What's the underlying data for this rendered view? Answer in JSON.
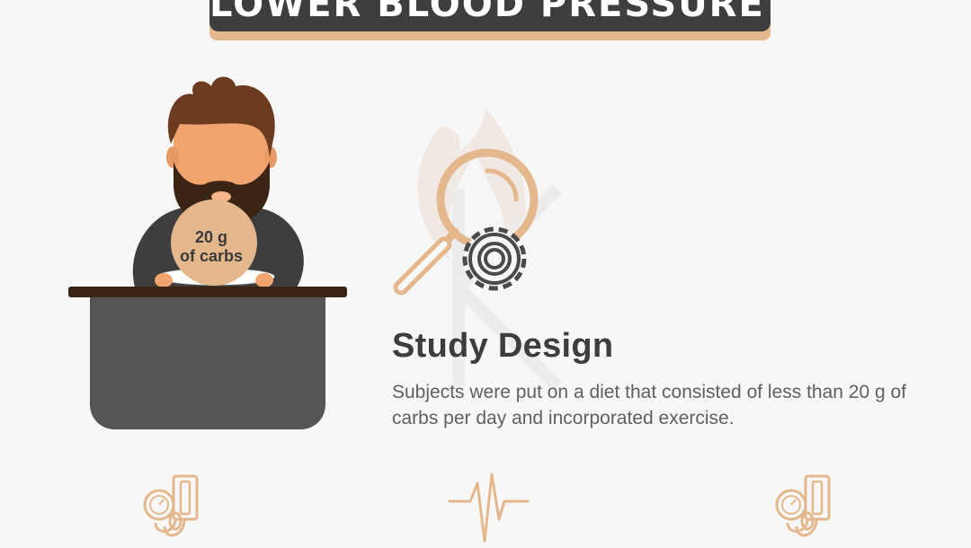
{
  "header": {
    "title": "LOWER BLOOD PRESSURE?"
  },
  "illustration": {
    "plate_line1": "20 g",
    "plate_line2": "of carbs"
  },
  "section": {
    "title": "Study Design",
    "body": "Subjects were put on a diet that consisted of less than 20 g of carbs per day and incorporated exercise."
  },
  "colors": {
    "accent": "#e4b88c",
    "dark": "#3f3e3f",
    "table": "#555555",
    "hair": "#6b3a1f",
    "skin": "#f2a46f"
  },
  "icons": [
    "magnifier-icon",
    "gear-icon",
    "blood-pressure-monitor-icon",
    "heartbeat-icon"
  ]
}
